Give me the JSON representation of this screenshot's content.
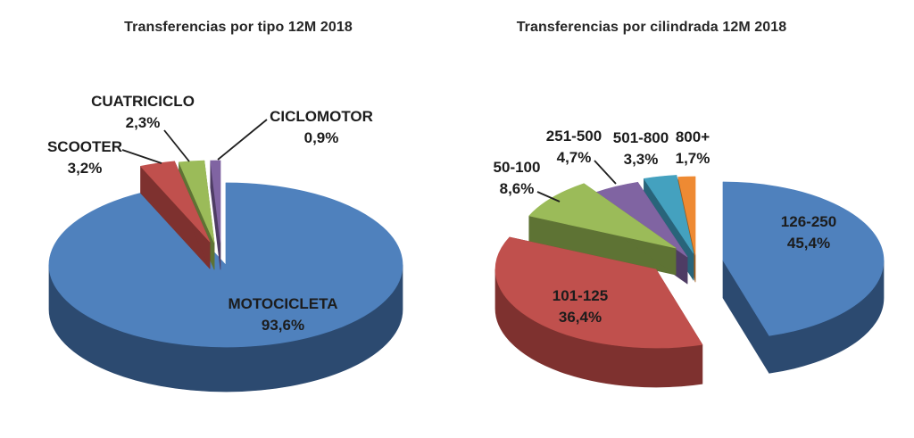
{
  "background": "#FFFFFF",
  "chart_data": [
    {
      "type": "pie",
      "style": "3d-exploded",
      "title": "Transferencias por tipo 12M 2018",
      "labels": [
        "MOTOCICLETA",
        "SCOOTER",
        "CUATRICICLO",
        "CICLOMOTOR"
      ],
      "values": [
        93.6,
        3.2,
        2.3,
        0.9
      ],
      "pct_labels": [
        "93,6%",
        "3,2%",
        "2,3%",
        "0,9%"
      ],
      "colors": [
        "#4F81BD",
        "#C0504D",
        "#9BBB59",
        "#8064A2"
      ],
      "side_colors": [
        "#2C4A70",
        "#7E312F",
        "#5E7334",
        "#4E3C64"
      ],
      "start_angle_deg": 0,
      "direction": "clockwise",
      "legend_position": "none",
      "label_style": "category name + percentage, leader lines on small slices"
    },
    {
      "type": "pie",
      "style": "3d-exploded",
      "title": "Transferencias por cilindrada 12M 2018",
      "labels": [
        "126-250",
        "101-125",
        "50-100",
        "251-500",
        "501-800",
        "800+"
      ],
      "values": [
        45.4,
        36.4,
        8.6,
        4.7,
        3.3,
        1.7
      ],
      "pct_labels": [
        "45,4%",
        "36,4%",
        "8,6%",
        "4,7%",
        "3,3%",
        "1,7%"
      ],
      "colors": [
        "#4F81BD",
        "#C0504D",
        "#9BBB59",
        "#8064A2",
        "#44A1BF",
        "#EE8A33"
      ],
      "side_colors": [
        "#2C4A70",
        "#7E312F",
        "#5E7334",
        "#4E3C64",
        "#29647A",
        "#9E5A1A"
      ],
      "start_angle_deg": 0,
      "direction": "clockwise",
      "legend_position": "none",
      "label_style": "category name + percentage, leader lines on small slices"
    }
  ]
}
